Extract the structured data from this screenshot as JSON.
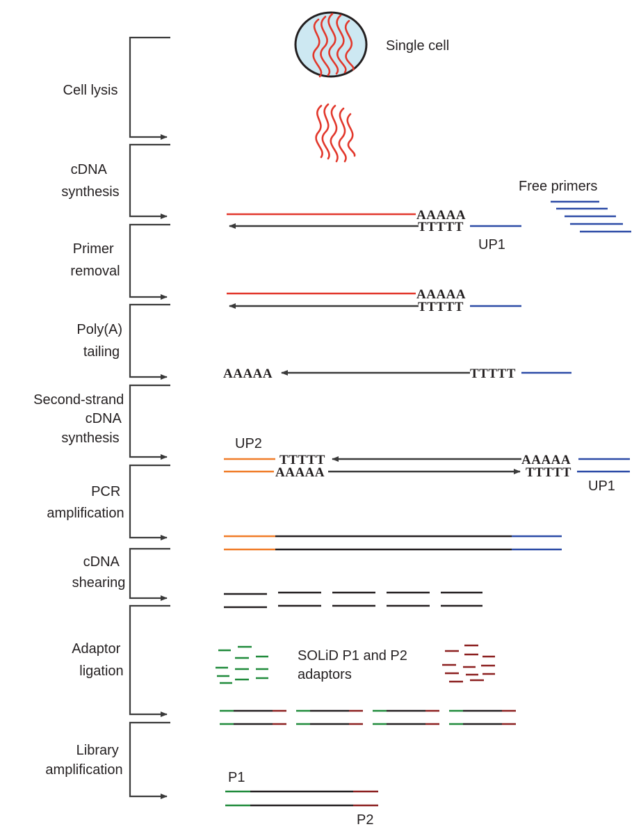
{
  "steps": [
    {
      "lines": [
        "Cell lysis"
      ]
    },
    {
      "lines": [
        "cDNA",
        "synthesis"
      ]
    },
    {
      "lines": [
        "Primer",
        "removal"
      ]
    },
    {
      "lines": [
        "Poly(A)",
        "tailing"
      ]
    },
    {
      "lines": [
        "Second-strand",
        "cDNA",
        "synthesis"
      ]
    },
    {
      "lines": [
        "PCR",
        "amplification"
      ]
    },
    {
      "lines": [
        "cDNA",
        "shearing"
      ]
    },
    {
      "lines": [
        "Adaptor",
        "ligation"
      ]
    },
    {
      "lines": [
        "Library",
        "amplification"
      ]
    }
  ],
  "labels": {
    "single_cell": "Single cell",
    "free_primers": "Free primers",
    "up1": "UP1",
    "up2": "UP2",
    "adaptors_line1": "SOLiD P1 and P2",
    "adaptors_line2": "adaptors",
    "p1": "P1",
    "p2": "P2"
  },
  "seq": {
    "polyA": "AAAAA",
    "polyT": "TTTTT"
  },
  "colors": {
    "mrna": "#e2372b",
    "primer": "#2b4aa6",
    "up2": "#f07c28",
    "p1_adaptor": "#1f8a3a",
    "p2_adaptor": "#8b1f1f",
    "dna": "#231f20",
    "cell_fill": "#cde8f2",
    "cell_stroke": "#231f20"
  }
}
